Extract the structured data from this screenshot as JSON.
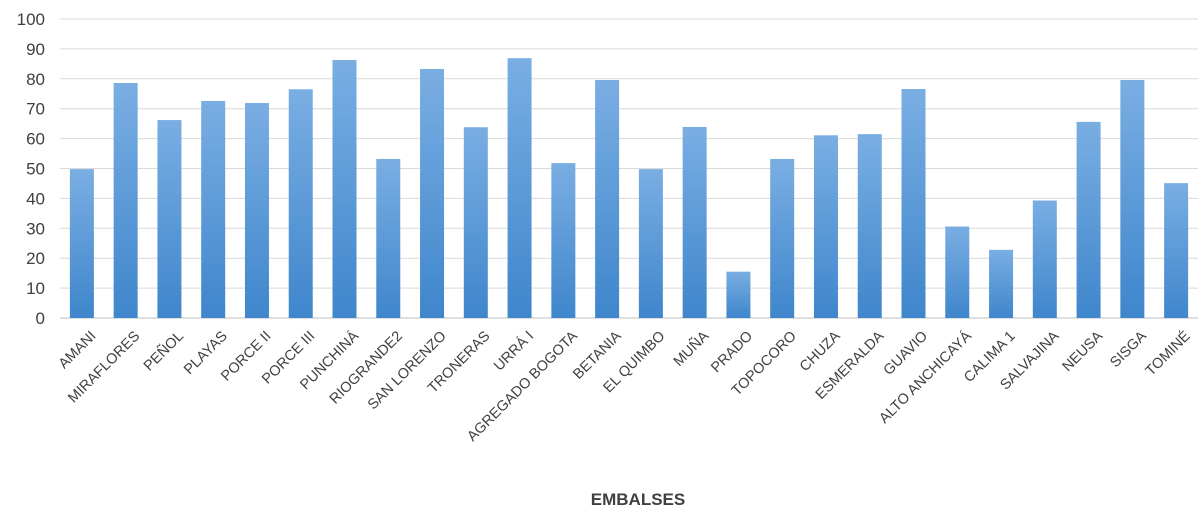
{
  "chart_data": {
    "type": "bar",
    "title": "",
    "xlabel": "EMBALSES",
    "ylabel": "",
    "ylim": [
      0,
      100
    ],
    "yticks": [
      0,
      10,
      20,
      30,
      40,
      50,
      60,
      70,
      80,
      90,
      100
    ],
    "grid": true,
    "legend": "none",
    "bar_color_top": "#7aaee3",
    "bar_color_bottom": "#3f86cc",
    "categories": [
      "AMANI",
      "MIRAFLORES",
      "PEÑOL",
      "PLAYAS",
      "PORCE II",
      "PORCE III",
      "PUNCHINÁ",
      "RIOGRANDE2",
      "SAN LORENZO",
      "TRONERAS",
      "URRÁ I",
      "AGREGADO BOGOTA",
      "BETANIA",
      "EL QUIMBO",
      "MUÑA",
      "PRADO",
      "TOPOCORO",
      "CHUZA",
      "ESMERALDA",
      "GUAVIO",
      "ALTO ANCHICAYÁ",
      "CALIMA 1",
      "SALVAJINA",
      "NEUSA",
      "SISGA",
      "TOMINÉ"
    ],
    "values": [
      49.8,
      78.6,
      66.2,
      72.6,
      71.9,
      76.5,
      86.3,
      53.2,
      83.3,
      63.8,
      86.9,
      51.8,
      79.6,
      49.8,
      63.9,
      15.5,
      53.2,
      61.1,
      61.5,
      76.6,
      30.6,
      22.8,
      39.3,
      65.6,
      79.6,
      45.1
    ]
  }
}
